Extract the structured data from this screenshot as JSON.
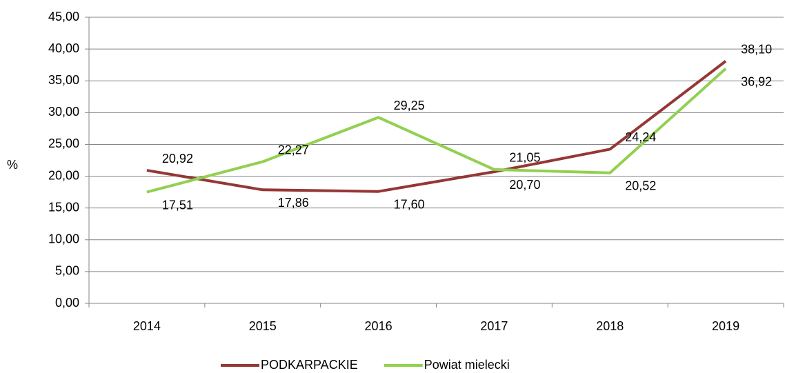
{
  "chart_data": {
    "type": "line",
    "categories": [
      "2014",
      "2015",
      "2016",
      "2017",
      "2018",
      "2019"
    ],
    "series": [
      {
        "name": "PODKARPACKIE",
        "color": "#953735",
        "values": [
          20.92,
          17.86,
          17.6,
          20.7,
          24.24,
          38.1
        ],
        "value_labels": [
          "20,92",
          "17,86",
          "17,60",
          "20,70",
          "24,24",
          "38,10"
        ]
      },
      {
        "name": "Powiat mielecki",
        "color": "#92d050",
        "values": [
          17.51,
          22.27,
          29.25,
          21.05,
          20.52,
          36.92
        ],
        "value_labels": [
          "17,51",
          "22,27",
          "29,25",
          "21,05",
          "20,52",
          "36,92"
        ]
      }
    ],
    "ylabel": "%",
    "ylim": [
      0,
      45
    ],
    "yticks": [
      {
        "value": 0,
        "label": "0,00"
      },
      {
        "value": 5,
        "label": "5,00"
      },
      {
        "value": 10,
        "label": "10,00"
      },
      {
        "value": 15,
        "label": "15,00"
      },
      {
        "value": 20,
        "label": "20,00"
      },
      {
        "value": 25,
        "label": "25,00"
      },
      {
        "value": 30,
        "label": "30,00"
      },
      {
        "value": 35,
        "label": "35,00"
      },
      {
        "value": 40,
        "label": "40,00"
      },
      {
        "value": 45,
        "label": "45,00"
      }
    ],
    "grid": true,
    "legend": "bottom"
  }
}
